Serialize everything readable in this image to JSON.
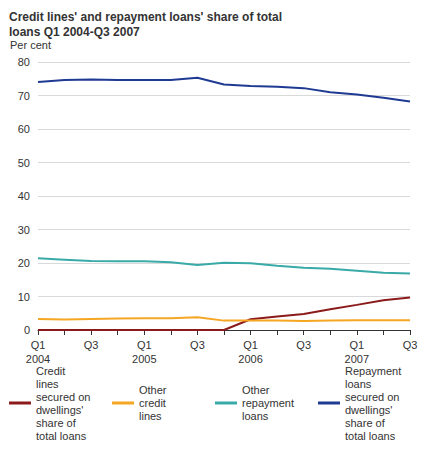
{
  "chart_data": {
    "type": "line",
    "title": "Credit lines' and repayment loans' share of total loans Q1 2004-Q3 2007",
    "y_label": "Per cent",
    "categories": [
      "Q1\n2004",
      null,
      "Q3",
      null,
      "Q1\n2005",
      null,
      "Q3",
      null,
      "Q1\n2006",
      null,
      "Q3",
      null,
      "Q1\n2007",
      null,
      "Q3"
    ],
    "series": [
      {
        "name": "Credit lines secured on dwellings' share of total loans",
        "color": "#8b1a1a",
        "values": [
          0,
          0,
          0,
          0,
          0,
          0,
          0,
          0,
          3.2,
          4.0,
          4.8,
          6.2,
          7.5,
          8.9,
          9.7
        ]
      },
      {
        "name": "Other credit lines",
        "color": "#f5a623",
        "values": [
          3.3,
          3.1,
          3.3,
          3.4,
          3.5,
          3.5,
          3.8,
          2.8,
          2.8,
          2.8,
          2.7,
          2.8,
          2.9,
          2.9,
          2.9
        ]
      },
      {
        "name": "Other repayment loans",
        "color": "#3aaaa8",
        "values": [
          21.4,
          21.0,
          20.6,
          20.5,
          20.5,
          20.2,
          19.4,
          20.1,
          19.9,
          19.2,
          18.6,
          18.3,
          17.7,
          17.1,
          16.9
        ]
      },
      {
        "name": "Repayment loans secured on dwellings' share of total loans",
        "color": "#1f3a93",
        "values": [
          74.0,
          74.6,
          74.8,
          74.6,
          74.6,
          74.6,
          75.3,
          73.3,
          72.8,
          72.6,
          72.2,
          71.0,
          70.3,
          69.3,
          68.2
        ]
      }
    ],
    "ylim": [
      0,
      80
    ],
    "yticks": [
      0,
      10,
      20,
      30,
      40,
      50,
      60,
      70,
      80
    ],
    "grid": true
  }
}
